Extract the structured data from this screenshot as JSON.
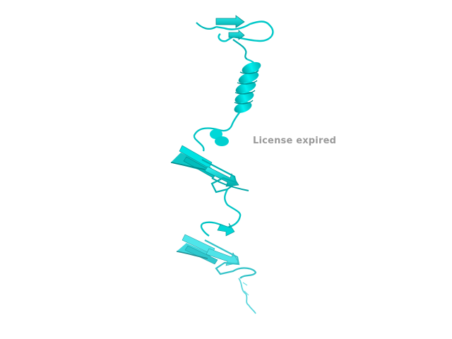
{
  "watermark": {
    "text": "License expired"
  },
  "colors": {
    "background": "#ffffff",
    "ribbon_main": "#00e5e5",
    "ribbon_light": "#5fe9ee",
    "ribbon_dark": "#009a9a",
    "watermark": "#9a9a9a"
  },
  "molecule": {
    "style": "cartoon ribbon",
    "elements": [
      "beta-strand",
      "alpha-helix",
      "loop"
    ]
  }
}
